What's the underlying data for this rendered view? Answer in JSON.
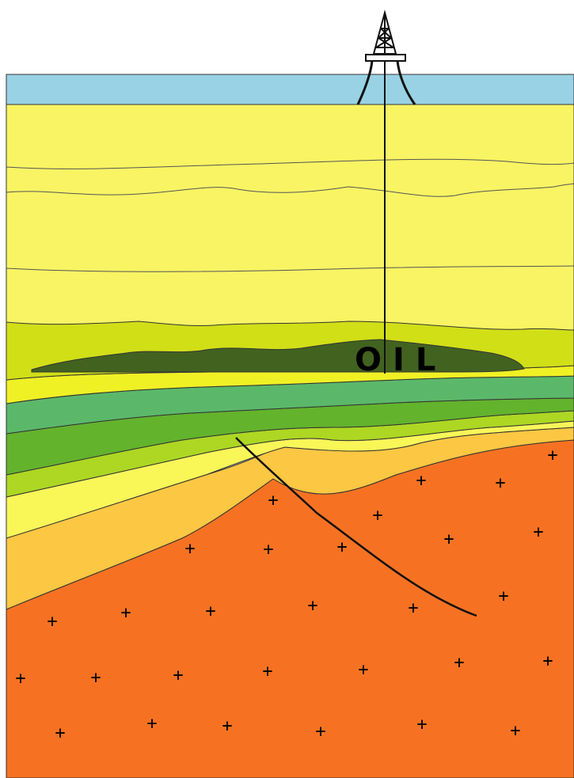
{
  "diagram": {
    "oil_label": "OIL",
    "plus_marker": "+",
    "colors": {
      "sky": "#ffffff",
      "sea": "#98d2e4",
      "upper_sediment": "#f8f463",
      "line": "#333333",
      "cap_rock": "#d1df17",
      "oil": "#426220",
      "bright_yellow": "#f0f124",
      "green_teal": "#5bb86a",
      "green": "#63b32d",
      "light_green": "#add723",
      "yellow": "#f9f658",
      "orange_yellow": "#fcc742",
      "basement": "#f67222",
      "fault": "#111111",
      "derrick": "#111111"
    }
  }
}
